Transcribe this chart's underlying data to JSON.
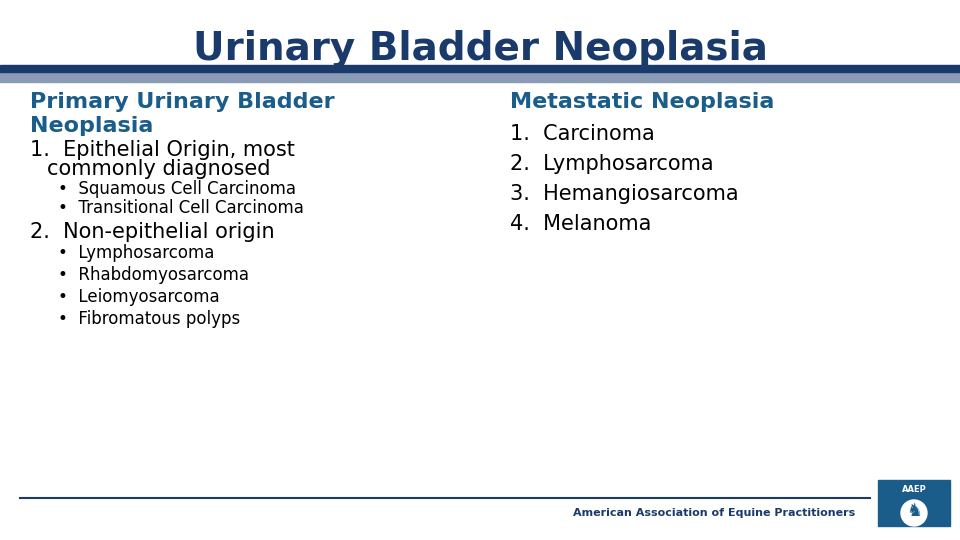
{
  "title": "Urinary Bladder Neoplasia",
  "title_color": "#1a3a6b",
  "title_bar_color1": "#1a3a6b",
  "title_bar_color2": "#8a9bb5",
  "background_color": "#ffffff",
  "left_heading_line1": "Primary Urinary Bladder",
  "left_heading_line2": "Neoplasia",
  "left_heading_color": "#1a5c8a",
  "right_heading": "Metastatic Neoplasia",
  "right_heading_color": "#1a5c8a",
  "footer_text": "American Association of Equine Practitioners",
  "footer_color": "#1a3a6b",
  "footer_line_color": "#1a3a6b",
  "logo_box_color": "#1a5c8a",
  "text_color": "#000000"
}
